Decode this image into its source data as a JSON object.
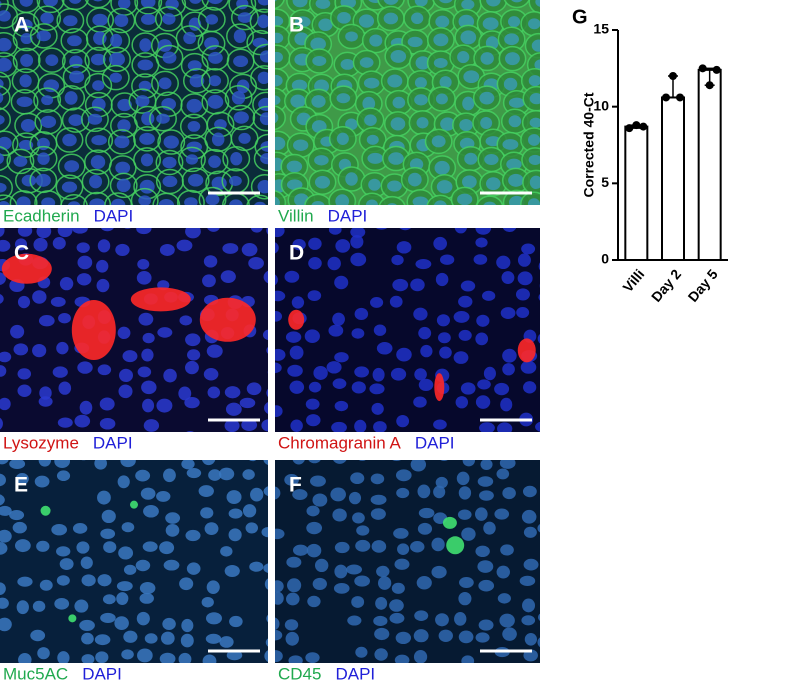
{
  "panels": [
    {
      "label": "A",
      "marker": "Ecadherin",
      "counterstain": "DAPI"
    },
    {
      "label": "B",
      "marker": "Villin",
      "counterstain": "DAPI"
    },
    {
      "label": "C",
      "marker": "Lysozyme",
      "counterstain": "DAPI"
    },
    {
      "label": "D",
      "marker": "Chromagranin A",
      "counterstain": "DAPI"
    },
    {
      "label": "E",
      "marker": "Muc5AC",
      "counterstain": "DAPI"
    },
    {
      "label": "F",
      "marker": "CD45",
      "counterstain": "DAPI"
    }
  ],
  "chart_data": {
    "type": "bar",
    "panel_label": "G",
    "ylabel": "Corrected 40-Ct",
    "categories": [
      "Villi",
      "Day 2",
      "Day 5"
    ],
    "values": [
      8.7,
      10.6,
      12.4
    ],
    "points": [
      [
        8.6,
        8.8,
        8.7
      ],
      [
        10.6,
        12.0,
        10.6
      ],
      [
        12.5,
        11.4,
        12.4
      ]
    ],
    "color": "#ffffff",
    "ylim": [
      0,
      15
    ],
    "yticks": [
      0,
      5,
      10,
      15
    ]
  }
}
